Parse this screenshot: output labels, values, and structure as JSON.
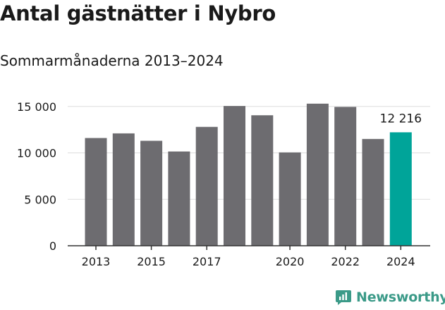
{
  "title": "Antal gästnätter i Nybro",
  "subtitle": "Sommarmånaderna 2013–2024",
  "brand": {
    "name": "Newsworthy",
    "icon": "newsworthy-logo-icon"
  },
  "colors": {
    "bar": "#6d6c70",
    "highlight": "#00a499",
    "grid": "#dddddd",
    "axis": "#333333"
  },
  "chart_data": {
    "type": "bar",
    "categories": [
      "2013",
      "2014",
      "2015",
      "2016",
      "2017",
      "2018",
      "2019",
      "2020",
      "2021",
      "2022",
      "2023",
      "2024"
    ],
    "values": [
      11600,
      12100,
      11300,
      10150,
      12800,
      15050,
      14050,
      10050,
      15300,
      14950,
      11500,
      12216
    ],
    "x_tick_labels": [
      "2013",
      "2015",
      "2017",
      "2020",
      "2022",
      "2024"
    ],
    "y_ticks": [
      0,
      5000,
      10000,
      15000
    ],
    "y_tick_labels": [
      "0",
      "5 000",
      "10 000",
      "15 000"
    ],
    "ylim": [
      0,
      17000
    ],
    "highlight_index": 11,
    "data_labels": [
      {
        "index": 11,
        "text": "12 216"
      }
    ],
    "grid": true,
    "xlabel": "",
    "ylabel": ""
  }
}
